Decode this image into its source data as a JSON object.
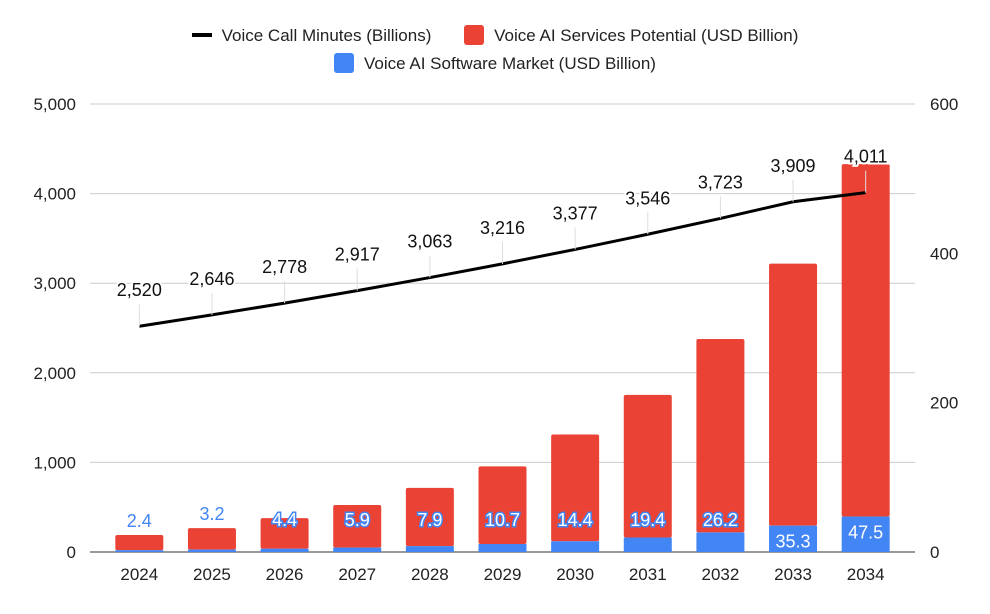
{
  "chart_data": {
    "type": "bar",
    "subtype": "stacked bar with line on secondary axis",
    "categories": [
      "2024",
      "2025",
      "2026",
      "2027",
      "2028",
      "2029",
      "2030",
      "2031",
      "2032",
      "2033",
      "2034"
    ],
    "series": [
      {
        "name": "Voice Call Minutes (Billions)",
        "type": "line",
        "axis": "left",
        "color": "#000000",
        "values": [
          2520,
          2646,
          2778,
          2917,
          3063,
          3216,
          3377,
          3546,
          3723,
          3909,
          4011
        ],
        "labels": [
          "2,520",
          "2,646",
          "2,778",
          "2,917",
          "3,063",
          "3,216",
          "3,377",
          "3,546",
          "3,723",
          "3,909",
          "4,011"
        ]
      },
      {
        "name": "Voice AI Software Market (USD Billion)",
        "type": "bar",
        "axis": "right",
        "color": "#4285f4",
        "values": [
          2.4,
          3.2,
          4.4,
          5.9,
          7.9,
          10.7,
          14.4,
          19.4,
          26.2,
          35.3,
          47.5
        ],
        "labels": [
          "2.4",
          "3.2",
          "4.4",
          "5.9",
          "7.9",
          "10.7",
          "14.4",
          "19.4",
          "26.2",
          "35.3",
          "47.5"
        ]
      },
      {
        "name": "Voice AI Services Potential (USD Billion)",
        "type": "bar",
        "axis": "right",
        "color": "#ea4335",
        "values": [
          20.4,
          28.8,
          41,
          57,
          78,
          104,
          143,
          191,
          259,
          351,
          472
        ]
      }
    ],
    "left_axis": {
      "range": [
        0,
        5000
      ],
      "ticks": [
        "0",
        "1,000",
        "2,000",
        "3,000",
        "4,000",
        "5,000"
      ]
    },
    "right_axis": {
      "range": [
        0,
        600
      ],
      "ticks": [
        "0",
        "200",
        "400",
        "600"
      ]
    },
    "legend": {
      "placement": "top"
    },
    "grid": true
  }
}
